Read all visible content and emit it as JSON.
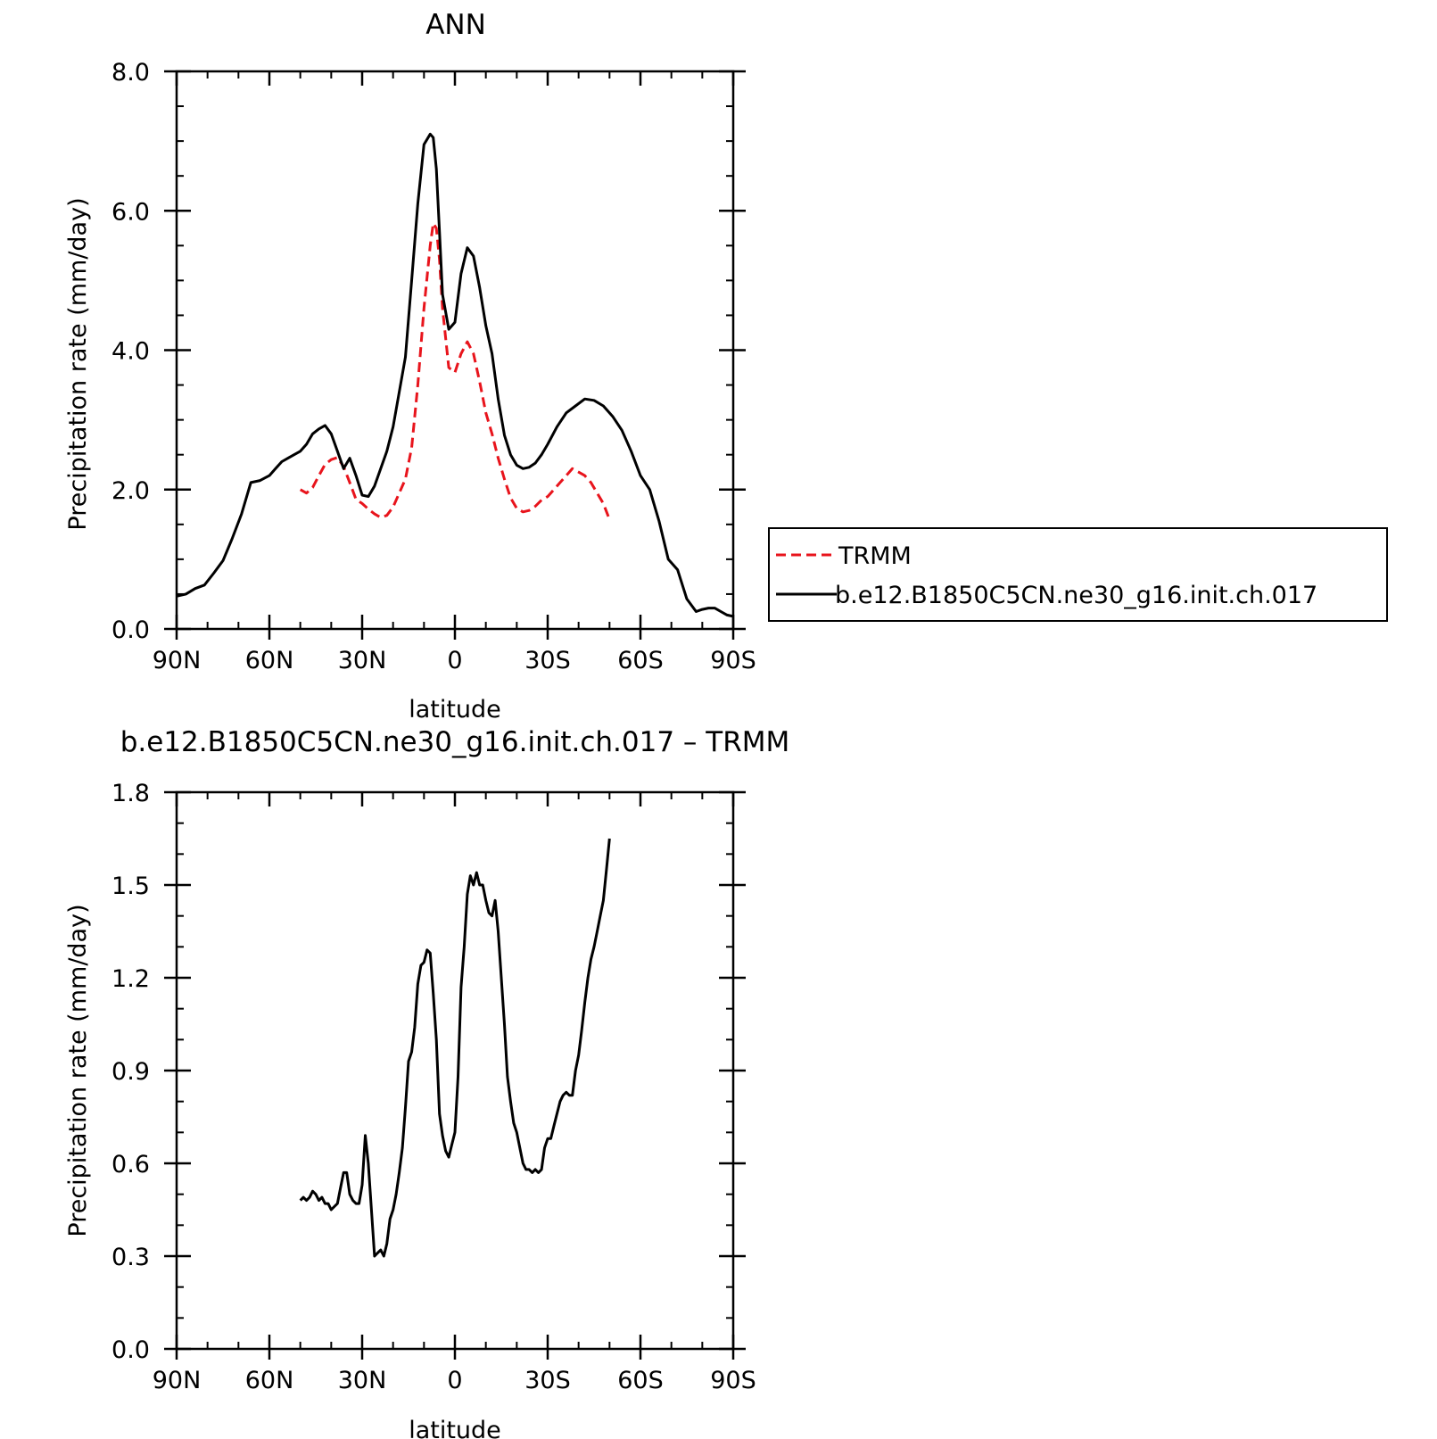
{
  "chart_data": [
    {
      "type": "line",
      "title": "ANN",
      "xlabel": "latitude",
      "ylabel": "Precipitation rate (mm/day)",
      "xlim": [
        90,
        -90
      ],
      "ylim": [
        0,
        8
      ],
      "x_ticks": [
        90,
        60,
        30,
        0,
        -30,
        -60,
        -90
      ],
      "x_tick_labels": [
        "90N",
        "60N",
        "30N",
        "0",
        "30S",
        "60S",
        "90S"
      ],
      "y_ticks": [
        0,
        2,
        4,
        6,
        8
      ],
      "y_tick_labels": [
        "0.0",
        "2.0",
        "4.0",
        "6.0",
        "8.0"
      ],
      "grid": false,
      "legend_position": "right",
      "series": [
        {
          "name": "TRMM",
          "style": "dashed",
          "color": "#e8141c",
          "x": [
            50,
            48,
            46,
            44,
            42,
            40,
            38,
            36,
            34,
            32,
            30,
            28,
            26,
            24,
            22,
            20,
            18,
            16,
            14,
            12,
            10,
            8,
            7,
            6,
            5,
            4,
            2,
            0,
            -2,
            -4,
            -6,
            -8,
            -10,
            -12,
            -14,
            -16,
            -18,
            -20,
            -22,
            -24,
            -26,
            -28,
            -30,
            -32,
            -34,
            -36,
            -38,
            -40,
            -42,
            -44,
            -46,
            -48,
            -50
          ],
          "y": [
            2.0,
            1.95,
            2.03,
            2.2,
            2.36,
            2.43,
            2.46,
            2.33,
            2.1,
            1.86,
            1.8,
            1.72,
            1.65,
            1.6,
            1.63,
            1.75,
            1.95,
            2.15,
            2.6,
            3.5,
            4.6,
            5.5,
            5.82,
            5.75,
            5.3,
            4.6,
            3.75,
            3.68,
            3.95,
            4.12,
            3.95,
            3.55,
            3.1,
            2.8,
            2.45,
            2.15,
            1.88,
            1.73,
            1.68,
            1.7,
            1.76,
            1.85,
            1.9,
            2.0,
            2.1,
            2.2,
            2.3,
            2.25,
            2.2,
            2.1,
            1.95,
            1.8,
            1.57
          ]
        },
        {
          "name": "b.e12.B1850C5CN.ne30_g16.init.ch.017",
          "style": "solid",
          "color": "#000000",
          "x": [
            90,
            87,
            84,
            81,
            78,
            75,
            72,
            69,
            66,
            63,
            60,
            58,
            56,
            54,
            52,
            50,
            48,
            46,
            44,
            42,
            40,
            38,
            36,
            34,
            32,
            30,
            28,
            26,
            24,
            22,
            20,
            18,
            16,
            14,
            12,
            10,
            8,
            7,
            6,
            5,
            4,
            2,
            0,
            -2,
            -4,
            -6,
            -8,
            -10,
            -12,
            -14,
            -16,
            -18,
            -20,
            -22,
            -24,
            -26,
            -28,
            -30,
            -33,
            -36,
            -39,
            -42,
            -45,
            -48,
            -51,
            -54,
            -57,
            -60,
            -63,
            -66,
            -69,
            -72,
            -75,
            -78,
            -80,
            -82,
            -84,
            -86,
            -88,
            -90
          ],
          "y": [
            0.47,
            0.5,
            0.58,
            0.63,
            0.8,
            0.98,
            1.3,
            1.65,
            2.1,
            2.13,
            2.2,
            2.3,
            2.4,
            2.45,
            2.5,
            2.55,
            2.65,
            2.8,
            2.87,
            2.92,
            2.8,
            2.55,
            2.3,
            2.45,
            2.2,
            1.92,
            1.9,
            2.05,
            2.3,
            2.55,
            2.9,
            3.4,
            3.9,
            5.0,
            6.1,
            6.95,
            7.1,
            7.05,
            6.6,
            5.7,
            4.8,
            4.3,
            4.4,
            5.1,
            5.47,
            5.35,
            4.9,
            4.35,
            3.95,
            3.3,
            2.78,
            2.5,
            2.35,
            2.3,
            2.32,
            2.38,
            2.5,
            2.65,
            2.9,
            3.1,
            3.2,
            3.3,
            3.28,
            3.2,
            3.05,
            2.85,
            2.55,
            2.2,
            2.0,
            1.55,
            1.0,
            0.85,
            0.43,
            0.25,
            0.28,
            0.3,
            0.3,
            0.25,
            0.2,
            0.18
          ]
        }
      ]
    },
    {
      "type": "line",
      "title": "b.e12.B1850C5CN.ne30_g16.init.ch.017 – TRMM",
      "xlabel": "latitude",
      "ylabel": "Precipitation rate (mm/day)",
      "xlim": [
        90,
        -90
      ],
      "ylim": [
        0,
        1.8
      ],
      "x_ticks": [
        90,
        60,
        30,
        0,
        -30,
        -60,
        -90
      ],
      "x_tick_labels": [
        "90N",
        "60N",
        "30N",
        "0",
        "30S",
        "60S",
        "90S"
      ],
      "y_ticks": [
        0,
        0.3,
        0.6,
        0.9,
        1.2,
        1.5,
        1.8
      ],
      "y_tick_labels": [
        "0.0",
        "0.3",
        "0.6",
        "0.9",
        "1.2",
        "1.5",
        "1.8"
      ],
      "grid": false,
      "series": [
        {
          "style": "solid",
          "color": "#000000",
          "x": [
            50,
            49,
            48,
            47,
            46,
            45,
            44,
            43,
            42,
            41,
            40,
            39,
            38,
            37,
            36,
            35,
            34,
            33,
            32,
            31,
            30,
            29,
            28,
            27,
            26,
            25,
            24,
            23,
            22,
            21,
            20,
            19,
            18,
            17,
            16,
            15,
            14,
            13,
            12,
            11,
            10,
            9,
            8,
            7,
            6,
            5,
            4,
            3,
            2,
            1,
            0,
            -1,
            -2,
            -3,
            -4,
            -5,
            -6,
            -7,
            -8,
            -9,
            -10,
            -11,
            -12,
            -13,
            -14,
            -15,
            -16,
            -17,
            -18,
            -19,
            -20,
            -21,
            -22,
            -23,
            -24,
            -25,
            -26,
            -27,
            -28,
            -29,
            -30,
            -31,
            -32,
            -33,
            -34,
            -35,
            -36,
            -37,
            -38,
            -39,
            -40,
            -41,
            -42,
            -43,
            -44,
            -45,
            -46,
            -47,
            -48,
            -49,
            -50
          ],
          "y": [
            0.48,
            0.49,
            0.48,
            0.49,
            0.51,
            0.5,
            0.48,
            0.49,
            0.47,
            0.47,
            0.45,
            0.46,
            0.47,
            0.52,
            0.57,
            0.57,
            0.5,
            0.48,
            0.47,
            0.47,
            0.53,
            0.69,
            0.6,
            0.45,
            0.3,
            0.31,
            0.32,
            0.3,
            0.34,
            0.42,
            0.45,
            0.5,
            0.57,
            0.65,
            0.78,
            0.93,
            0.96,
            1.04,
            1.18,
            1.24,
            1.25,
            1.29,
            1.28,
            1.15,
            1.0,
            0.76,
            0.69,
            0.64,
            0.62,
            0.66,
            0.7,
            0.88,
            1.17,
            1.3,
            1.47,
            1.53,
            1.5,
            1.54,
            1.5,
            1.5,
            1.45,
            1.41,
            1.4,
            1.45,
            1.35,
            1.2,
            1.05,
            0.88,
            0.8,
            0.73,
            0.7,
            0.65,
            0.6,
            0.58,
            0.58,
            0.57,
            0.58,
            0.57,
            0.58,
            0.65,
            0.68,
            0.68,
            0.72,
            0.76,
            0.8,
            0.82,
            0.83,
            0.82,
            0.82,
            0.9,
            0.95,
            1.03,
            1.12,
            1.2,
            1.26,
            1.3,
            1.35,
            1.4,
            1.45,
            1.55,
            1.65
          ]
        }
      ]
    }
  ]
}
